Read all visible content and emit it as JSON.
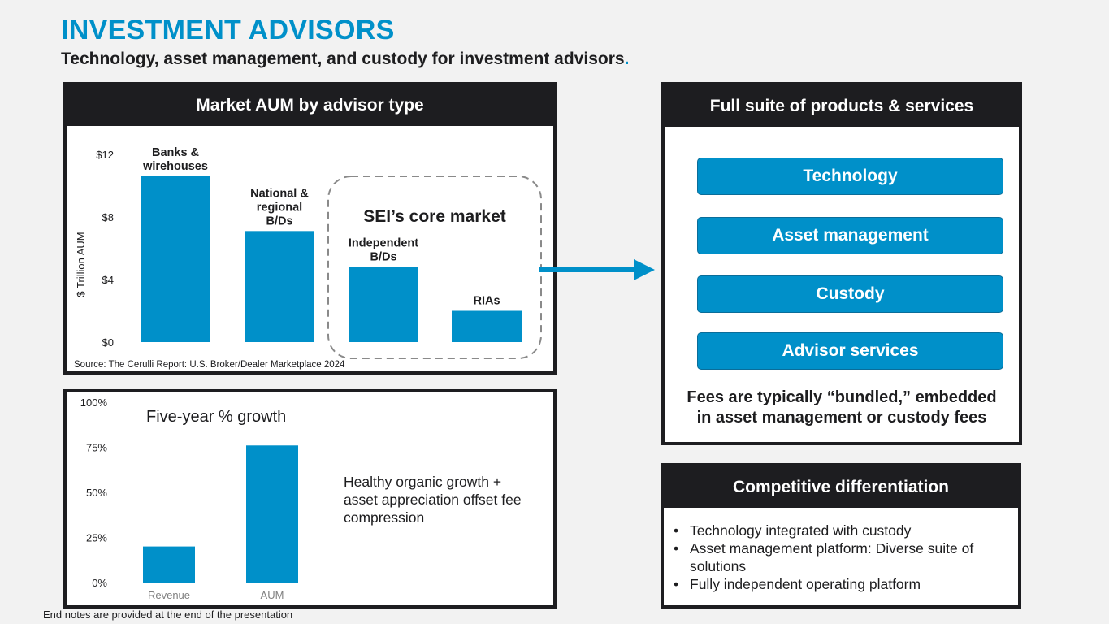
{
  "header": {
    "title": "INVESTMENT ADVISORS",
    "subtitle": "Technology, asset management, and custody for investment advisors",
    "subtitle_dot": "."
  },
  "aum_panel": {
    "heading": "Market AUM by advisor type",
    "source": "Source: The Cerulli Report: U.S. Broker/Dealer Marketplace 2024",
    "core_market_label": "SEI’s core market",
    "chart_data": {
      "type": "bar",
      "ylabel": "$ Trillion AUM",
      "ylim": [
        0,
        12
      ],
      "yticks": [
        "$0",
        "$4",
        "$8",
        "$12"
      ],
      "ytick_values": [
        0,
        4,
        8,
        12
      ],
      "categories": [
        [
          "Banks &",
          "wirehouses"
        ],
        [
          "National &",
          "regional",
          "B/Ds"
        ],
        [
          "Independent",
          "B/Ds"
        ],
        [
          "RIAs"
        ]
      ],
      "values": [
        10.6,
        7.1,
        4.8,
        2.0
      ],
      "bar_color": "#0090c9"
    }
  },
  "growth_panel": {
    "chart_data": {
      "type": "bar",
      "title": "Five-year % growth",
      "categories": [
        "Revenue",
        "AUM"
      ],
      "values": [
        20,
        76
      ],
      "ylim": [
        0,
        100
      ],
      "yticks": [
        "0%",
        "25%",
        "50%",
        "75%",
        "100%"
      ],
      "ytick_values": [
        0,
        25,
        50,
        75,
        100
      ],
      "bar_color": "#0090c9"
    },
    "note": [
      "Healthy organic growth +",
      "asset appreciation offset fee",
      "compression"
    ]
  },
  "suite_panel": {
    "heading": "Full suite of products & services",
    "services": [
      "Technology",
      "Asset management",
      "Custody",
      "Advisor services"
    ],
    "fees_note": [
      "Fees are typically “bundled,” embedded",
      "in asset management or custody fees"
    ]
  },
  "diff_panel": {
    "heading": "Competitive differentiation",
    "items": [
      "Technology integrated with custody",
      "Asset management platform: Diverse suite of solutions",
      "Fully independent operating platform"
    ]
  },
  "footer": {
    "end_note": "End notes are provided at the end of the presentation"
  },
  "colors": {
    "accent": "#0090c9",
    "dark": "#1d1d20"
  }
}
